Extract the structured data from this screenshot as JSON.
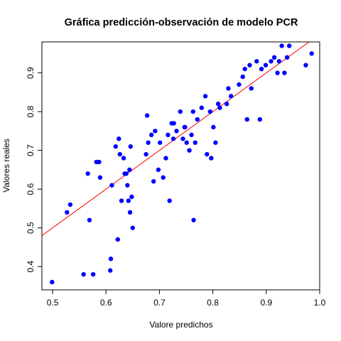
{
  "chart_data": {
    "type": "scatter",
    "title": "Gráfica predicción-observación de modelo PCR",
    "xlabel": "Valore predichos",
    "ylabel": "Valores reales",
    "xlim": [
      0.48,
      1.0
    ],
    "ylim": [
      0.34,
      0.98
    ],
    "x_ticks": [
      0.5,
      0.6,
      0.7,
      0.8,
      0.9,
      1.0
    ],
    "x_tick_labels": [
      "0.5",
      "0.6",
      "0.7",
      "0.8",
      "0.9",
      "1.0"
    ],
    "y_ticks": [
      0.4,
      0.5,
      0.6,
      0.7,
      0.8,
      0.9
    ],
    "y_tick_labels": [
      "0.4",
      "0.5",
      "0.6",
      "0.7",
      "0.8",
      "0.9"
    ],
    "grid": false,
    "point_color": "#0000FF",
    "line_color": "#FF0000",
    "reference_line": {
      "type": "abline",
      "intercept": 0,
      "slope": 1
    },
    "series": [
      {
        "x": [
          0.499,
          0.527,
          0.533,
          0.558,
          0.566,
          0.569,
          0.576,
          0.582,
          0.587,
          0.589,
          0.608,
          0.609,
          0.611,
          0.618,
          0.622,
          0.624,
          0.626,
          0.629,
          0.633,
          0.635,
          0.638,
          0.64,
          0.642,
          0.644,
          0.645,
          0.646,
          0.648,
          0.65,
          0.675,
          0.677,
          0.679,
          0.685,
          0.689,
          0.692,
          0.698,
          0.701,
          0.707,
          0.712,
          0.716,
          0.719,
          0.723,
          0.726,
          0.727,
          0.732,
          0.739,
          0.744,
          0.747,
          0.748,
          0.751,
          0.756,
          0.76,
          0.763,
          0.764,
          0.767,
          0.771,
          0.779,
          0.786,
          0.789,
          0.795,
          0.797,
          0.801,
          0.805,
          0.81,
          0.813,
          0.826,
          0.829,
          0.834,
          0.849,
          0.856,
          0.86,
          0.864,
          0.869,
          0.872,
          0.882,
          0.888,
          0.891,
          0.899,
          0.909,
          0.915,
          0.921,
          0.924,
          0.929,
          0.934,
          0.939,
          0.943,
          0.974,
          0.985
        ],
        "y": [
          0.36,
          0.54,
          0.56,
          0.38,
          0.64,
          0.52,
          0.38,
          0.67,
          0.67,
          0.63,
          0.39,
          0.42,
          0.61,
          0.71,
          0.47,
          0.73,
          0.69,
          0.57,
          0.68,
          0.64,
          0.64,
          0.61,
          0.57,
          0.65,
          0.54,
          0.71,
          0.58,
          0.5,
          0.69,
          0.79,
          0.72,
          0.74,
          0.62,
          0.75,
          0.65,
          0.72,
          0.63,
          0.68,
          0.74,
          0.57,
          0.77,
          0.73,
          0.77,
          0.75,
          0.8,
          0.73,
          0.76,
          0.76,
          0.72,
          0.7,
          0.74,
          0.8,
          0.52,
          0.72,
          0.78,
          0.81,
          0.84,
          0.69,
          0.8,
          0.68,
          0.76,
          0.72,
          0.82,
          0.81,
          0.82,
          0.86,
          0.84,
          0.87,
          0.89,
          0.91,
          0.78,
          0.92,
          0.86,
          0.93,
          0.78,
          0.91,
          0.92,
          0.93,
          0.94,
          0.9,
          0.93,
          0.97,
          0.9,
          0.94,
          0.97,
          0.92,
          0.95
        ]
      }
    ]
  }
}
